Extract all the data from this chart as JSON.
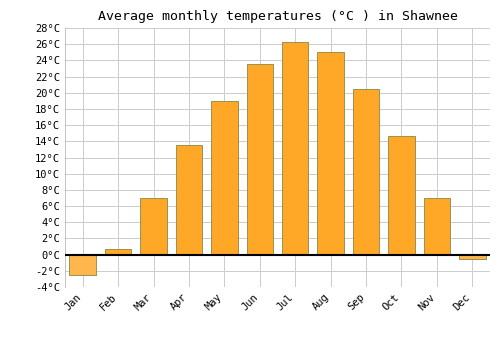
{
  "title": "Average monthly temperatures (°C ) in Shawnee",
  "months": [
    "Jan",
    "Feb",
    "Mar",
    "Apr",
    "May",
    "Jun",
    "Jul",
    "Aug",
    "Sep",
    "Oct",
    "Nov",
    "Dec"
  ],
  "temperatures": [
    -2.5,
    0.7,
    7.0,
    13.5,
    19.0,
    23.5,
    26.3,
    25.0,
    20.5,
    14.7,
    7.0,
    -0.5
  ],
  "bar_color_positive": "#FFA726",
  "bar_color_negative": "#FFB74D",
  "bar_edge_color": "#888844",
  "ylim": [
    -4,
    28
  ],
  "yticks": [
    -4,
    -2,
    0,
    2,
    4,
    6,
    8,
    10,
    12,
    14,
    16,
    18,
    20,
    22,
    24,
    26,
    28
  ],
  "ytick_labels": [
    "-4°C",
    "-2°C",
    "0°C",
    "2°C",
    "4°C",
    "6°C",
    "8°C",
    "10°C",
    "12°C",
    "14°C",
    "16°C",
    "18°C",
    "20°C",
    "22°C",
    "24°C",
    "26°C",
    "28°C"
  ],
  "background_color": "#ffffff",
  "grid_color": "#cccccc",
  "title_fontsize": 9.5,
  "tick_fontsize": 7.5,
  "font_family": "monospace",
  "bar_width": 0.75
}
